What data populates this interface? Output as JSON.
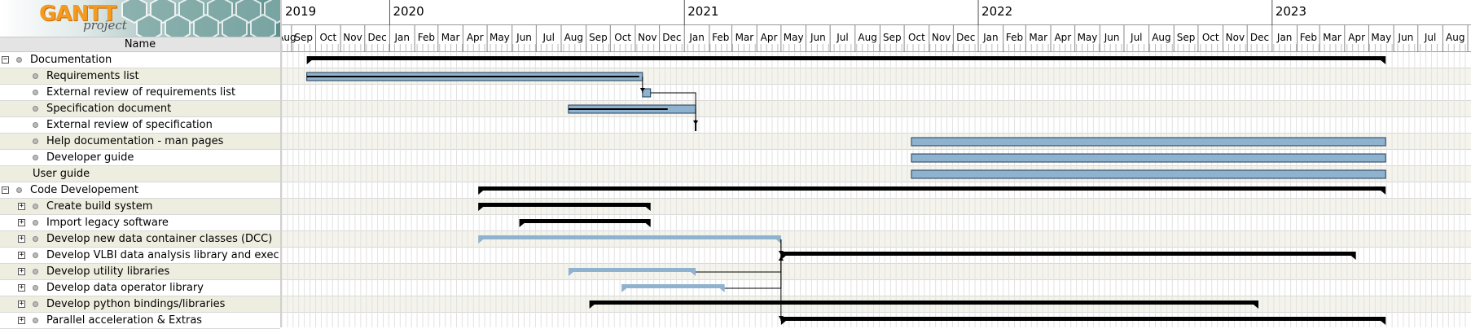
{
  "app": {
    "logo_text": "GANTT",
    "logo_sub": "project"
  },
  "tree_header": "Name",
  "tasks": [
    {
      "name": "Documentation",
      "level": 0,
      "toggle": "−",
      "start": "2019-09-20",
      "end": "2023-05-22",
      "style": "summary"
    },
    {
      "name": "Requirements list",
      "level": 1,
      "toggle": "",
      "start": "2019-09-20",
      "end": "2020-11-10",
      "style": "task",
      "progress": 0.99
    },
    {
      "name": "External review of requirements list",
      "level": 1,
      "toggle": "",
      "start": "2020-11-10",
      "end": "2020-11-20",
      "style": "task",
      "progress": 0
    },
    {
      "name": "Specification document",
      "level": 1,
      "toggle": "",
      "start": "2020-08-10",
      "end": "2021-01-15",
      "style": "task",
      "progress": 0.78
    },
    {
      "name": "External review of specification",
      "level": 1,
      "toggle": "",
      "start": "2021-01-15",
      "end": "2021-01-15",
      "style": "milestone"
    },
    {
      "name": "Help documentation - man pages",
      "level": 1,
      "toggle": "",
      "start": "2021-10-10",
      "end": "2023-05-22",
      "style": "task",
      "progress": 0
    },
    {
      "name": "Developer guide",
      "level": 1,
      "toggle": "",
      "start": "2021-10-10",
      "end": "2023-05-22",
      "style": "task",
      "progress": 0
    },
    {
      "name": "User guide",
      "level": 1,
      "toggle": "",
      "start": "2021-10-10",
      "end": "2023-05-22",
      "style": "task",
      "progress": 0
    },
    {
      "name": "Code Developement",
      "level": 0,
      "toggle": "−",
      "start": "2020-04-20",
      "end": "2023-05-22",
      "style": "summary"
    },
    {
      "name": "Create build system",
      "level": 1,
      "toggle": "+",
      "start": "2020-04-20",
      "end": "2020-11-20",
      "style": "summary"
    },
    {
      "name": "Import legacy software",
      "level": 1,
      "toggle": "+",
      "start": "2020-06-10",
      "end": "2020-11-20",
      "style": "summary"
    },
    {
      "name": "Develop new data container classes (DCC)",
      "level": 1,
      "toggle": "+",
      "start": "2020-04-20",
      "end": "2021-05-01",
      "style": "summary-light"
    },
    {
      "name": "Develop VLBI data analysis library and exec...",
      "level": 1,
      "toggle": "+",
      "start": "2021-05-01",
      "end": "2023-04-15",
      "style": "summary"
    },
    {
      "name": "Develop utility libraries",
      "level": 1,
      "toggle": "+",
      "start": "2020-08-10",
      "end": "2021-01-15",
      "style": "summary-light"
    },
    {
      "name": "Develop data operator library",
      "level": 1,
      "toggle": "+",
      "start": "2020-10-15",
      "end": "2021-02-20",
      "style": "summary-light"
    },
    {
      "name": "Develop python bindings/libraries",
      "level": 1,
      "toggle": "+",
      "start": "2020-09-05",
      "end": "2022-12-15",
      "style": "summary"
    },
    {
      "name": "Parallel acceleration & Extras",
      "level": 1,
      "toggle": "+",
      "start": "2021-05-01",
      "end": "2023-05-22",
      "style": "summary"
    }
  ],
  "dependencies": [
    {
      "from": 1,
      "to": 2
    },
    {
      "from": 2,
      "to": 4
    },
    {
      "from": 3,
      "to": 4
    },
    {
      "from": 11,
      "to": 12
    },
    {
      "from": 13,
      "to": 12
    },
    {
      "from": 14,
      "to": 12
    },
    {
      "from": 11,
      "to": 16
    }
  ],
  "timeline": {
    "start": "2019-08-20",
    "end": "2023-09-05",
    "years": [
      "2019",
      "2020",
      "2021",
      "2022",
      "2023"
    ],
    "month_labels": [
      "Jan",
      "Feb",
      "Mar",
      "Apr",
      "May",
      "Jun",
      "Jul",
      "Aug",
      "Sep",
      "Oct",
      "Nov",
      "Dec"
    ]
  },
  "colors": {
    "task_fill": "#8fb2cf",
    "task_border": "#1f3d5a",
    "summary": "#000000",
    "summary_light": "#8fb2cf",
    "grid": "#e2e2e2",
    "alt_row": "#eeeee0"
  }
}
